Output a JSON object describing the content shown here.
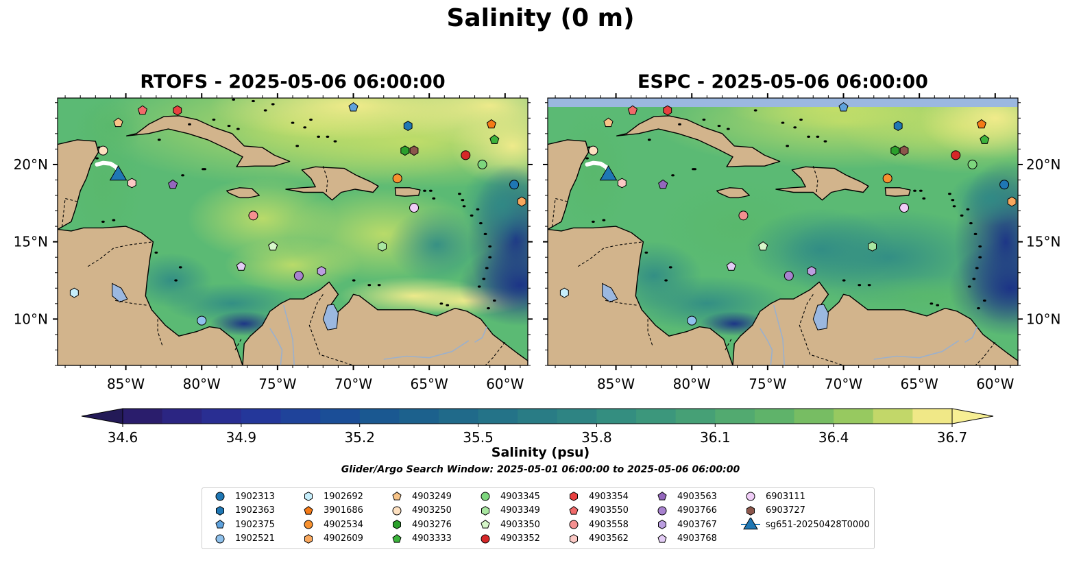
{
  "title": "Salinity (0 m)",
  "panels": [
    {
      "title": "RTOFS - 2025-05-06 06:00:00"
    },
    {
      "title": "ESPC - 2025-05-06 06:00:00"
    }
  ],
  "map": {
    "lon_ticks": [
      "85°W",
      "80°W",
      "75°W",
      "70°W",
      "65°W",
      "60°W"
    ],
    "lat_ticks": [
      "20°N",
      "15°N",
      "10°N"
    ],
    "extent": {
      "lon": [
        -89.5,
        -58.5
      ],
      "lat": [
        7,
        24.3
      ]
    },
    "land_color": "#d2b48c",
    "water_color": "#9bb8e0"
  },
  "colorbar": {
    "label": "Salinity (psu)",
    "min": 34.6,
    "max": 36.7,
    "ticks": [
      "34.6",
      "34.9",
      "35.2",
      "35.5",
      "35.8",
      "36.1",
      "36.4",
      "36.7"
    ],
    "colormap": "haline"
  },
  "search_window": "Glider/Argo Search Window: 2025-05-01 06:00:00 to 2025-05-06 06:00:00",
  "legend": [
    {
      "label": "1902313",
      "marker": "circle",
      "color": "#1f77b4",
      "lon": -59.4,
      "lat": 18.7
    },
    {
      "label": "1902363",
      "marker": "hexagon",
      "color": "#1f77b4",
      "lon": -66.4,
      "lat": 22.5
    },
    {
      "label": "1902375",
      "marker": "pentagon",
      "color": "#5fa2dd",
      "lon": -70.0,
      "lat": 23.7
    },
    {
      "label": "1902521",
      "marker": "circle",
      "color": "#8fc1ec",
      "lon": -80.0,
      "lat": 9.9
    },
    {
      "label": "1902692",
      "marker": "hexagon",
      "color": "#c6eefb",
      "lon": -88.4,
      "lat": 11.7
    },
    {
      "label": "3901686",
      "marker": "pentagon",
      "color": "#f47a17",
      "lon": -60.9,
      "lat": 22.6
    },
    {
      "label": "4902534",
      "marker": "circle",
      "color": "#f7912f",
      "lon": -67.1,
      "lat": 19.1
    },
    {
      "label": "4902609",
      "marker": "hexagon",
      "color": "#f9a85e",
      "lon": -58.9,
      "lat": 17.6
    },
    {
      "label": "4903249",
      "marker": "pentagon",
      "color": "#f8c488",
      "lon": -85.5,
      "lat": 22.7
    },
    {
      "label": "4903250",
      "marker": "circle",
      "color": "#fde0c0",
      "lon": -86.5,
      "lat": 20.9
    },
    {
      "label": "4903276",
      "marker": "hexagon",
      "color": "#2ca02c",
      "lon": -66.6,
      "lat": 20.9
    },
    {
      "label": "4903333",
      "marker": "pentagon",
      "color": "#3cb33c",
      "lon": -60.7,
      "lat": 21.6
    },
    {
      "label": "4903345",
      "marker": "circle",
      "color": "#7dd67d",
      "lon": -61.5,
      "lat": 20.0
    },
    {
      "label": "4903349",
      "marker": "hexagon",
      "color": "#a8e6a0",
      "lon": -68.1,
      "lat": 14.7
    },
    {
      "label": "4903350",
      "marker": "pentagon",
      "color": "#d6f7c9",
      "lon": -75.3,
      "lat": 14.7
    },
    {
      "label": "4903352",
      "marker": "circle",
      "color": "#d62728",
      "lon": -62.6,
      "lat": 20.6
    },
    {
      "label": "4903354",
      "marker": "hexagon",
      "color": "#e84040",
      "lon": -81.6,
      "lat": 23.5
    },
    {
      "label": "4903550",
      "marker": "pentagon",
      "color": "#f16a6a",
      "lon": -83.9,
      "lat": 23.5
    },
    {
      "label": "4903558",
      "marker": "circle",
      "color": "#f49090",
      "lon": -76.6,
      "lat": 16.7
    },
    {
      "label": "4903562",
      "marker": "hexagon",
      "color": "#fbc9c5",
      "lon": -84.6,
      "lat": 18.8
    },
    {
      "label": "4903563",
      "marker": "pentagon",
      "color": "#9467bd",
      "lon": -81.9,
      "lat": 18.7
    },
    {
      "label": "4903766",
      "marker": "circle",
      "color": "#a882cf",
      "lon": -73.6,
      "lat": 12.8
    },
    {
      "label": "4903767",
      "marker": "hexagon",
      "color": "#bb9ee0",
      "lon": -72.1,
      "lat": 13.1
    },
    {
      "label": "4903768",
      "marker": "pentagon",
      "color": "#e3ccf5",
      "lon": -77.4,
      "lat": 13.4
    },
    {
      "label": "6903111",
      "marker": "circle",
      "color": "#f0cdf7",
      "lon": -66.0,
      "lat": 17.2
    },
    {
      "label": "6903727",
      "marker": "hexagon",
      "color": "#8c564b",
      "lon": -66.0,
      "lat": 20.9
    },
    {
      "label": "sg651-20250428T0000",
      "marker": "triangle-line",
      "color": "#1f77b4",
      "lon": -85.5,
      "lat": 19.4,
      "track": [
        [
          -86.9,
          20.0
        ],
        [
          -86.5,
          20.1
        ],
        [
          -86.0,
          20.05
        ],
        [
          -85.6,
          19.8
        ],
        [
          -85.5,
          19.4
        ]
      ]
    }
  ]
}
